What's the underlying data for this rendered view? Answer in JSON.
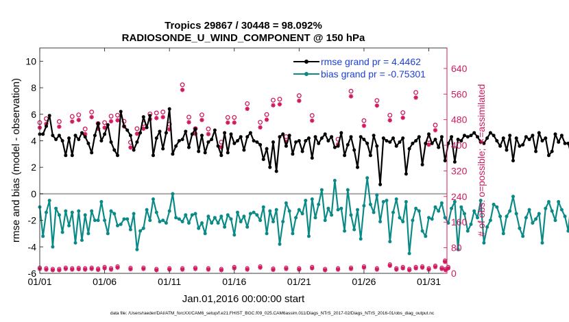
{
  "chart_data": {
    "type": "line",
    "title_line1": "Tropics 29867 / 30448 = 98.092%",
    "title_line2": "RADIOSONDE_U_WIND_COMPONENT @ 150 hPa",
    "xlabel": "Jan.01,2016 00:00:00 start",
    "ylabel_left": "rmse and bias (model - observation)",
    "ylabel_right": "# of obs: o=possible; ∗=assimilated",
    "footer": "data file: /Users/raeder/DAI/ATM_forcXX/CAM6_setup/f.e21.FHIST_BGC.f09_025.CAM6assim.011/Diags_NTrS_2017-02/Diags_NTrS_2016-01/obs_diag_output.nc",
    "xlim": [
      0,
      31.4
    ],
    "ylim_left": [
      -6,
      11
    ],
    "ylim_right": [
      0,
      704
    ],
    "x_ticks": [
      {
        "x": 0,
        "label": "01/01"
      },
      {
        "x": 5,
        "label": "01/06"
      },
      {
        "x": 10,
        "label": "01/11"
      },
      {
        "x": 15,
        "label": "01/16"
      },
      {
        "x": 20,
        "label": "01/21"
      },
      {
        "x": 25,
        "label": "01/26"
      },
      {
        "x": 30,
        "label": "01/31"
      }
    ],
    "y_ticks_left": [
      {
        "v": -6,
        "label": "-6"
      },
      {
        "v": -4,
        "label": "-4"
      },
      {
        "v": -2,
        "label": "-2"
      },
      {
        "v": 0,
        "label": "0"
      },
      {
        "v": 2,
        "label": "2"
      },
      {
        "v": 4,
        "label": "4"
      },
      {
        "v": 6,
        "label": "6"
      },
      {
        "v": 8,
        "label": "8"
      },
      {
        "v": 10,
        "label": "10"
      }
    ],
    "y_ticks_right": [
      {
        "v": 0,
        "label": "0"
      },
      {
        "v": 80,
        "label": "80"
      },
      {
        "v": 160,
        "label": "160"
      },
      {
        "v": 240,
        "label": "240"
      },
      {
        "v": 320,
        "label": "320"
      },
      {
        "v": 400,
        "label": "400"
      },
      {
        "v": 480,
        "label": "480"
      },
      {
        "v": 560,
        "label": "560"
      },
      {
        "v": 640,
        "label": "640"
      }
    ],
    "x_step": 0.25,
    "series": [
      {
        "name": "rmse",
        "legend": "rmse grand pr = 4.4462",
        "color": "#000000",
        "axis": "left",
        "values": [
          4.5,
          4.5,
          5.1,
          5.9,
          4.4,
          4.1,
          4.4,
          4.0,
          2.9,
          4.2,
          2.9,
          4.4,
          4.1,
          4.6,
          4.3,
          3.8,
          3.1,
          4.4,
          5.3,
          4.0,
          4.5,
          5.2,
          3.9,
          3.3,
          2.9,
          6.2,
          5.1,
          4.8,
          4.4,
          3.3,
          3.9,
          4.6,
          5.8,
          5.0,
          5.9,
          2.9,
          4.2,
          4.7,
          3.4,
          4.6,
          6.4,
          3.0,
          3.6,
          4.0,
          4.1,
          4.7,
          3.5,
          4.5,
          4.9,
          3.2,
          4.4,
          3.1,
          3.9,
          4.1,
          4.8,
          3.6,
          2.9,
          4.6,
          3.1,
          4.5,
          3.8,
          4.0,
          4.3,
          3.3,
          4.3,
          4.6,
          4.0,
          3.9,
          3.7,
          2.6,
          3.4,
          2.0,
          3.9,
          1.7,
          4.3,
          4.5,
          3.6,
          4.4,
          3.0,
          3.9,
          4.0,
          3.2,
          4.0,
          4.2,
          2.7,
          4.3,
          3.8,
          4.2,
          4.5,
          4.0,
          4.3,
          3.5,
          3.6,
          4.6,
          2.9,
          3.7,
          4.3,
          3.3,
          2.0,
          4.3,
          4.1,
          3.8,
          2.9,
          4.4,
          3.6,
          0.7,
          4.2,
          4.0,
          3.9,
          4.2,
          3.6,
          3.9,
          4.2,
          1.5,
          3.4,
          3.8,
          4.0,
          4.3,
          2.2,
          3.8,
          4.5,
          3.8,
          4.1,
          3.5,
          4.3,
          2.5,
          3.8,
          4.3,
          2.4,
          4.1,
          4.0,
          4.4,
          4.3,
          4.4,
          4.6,
          4.3,
          3.9,
          3.8,
          4.2,
          4.6,
          4.4,
          4.0,
          3.6,
          4.2,
          3.3,
          4.4,
          2.5,
          4.2,
          3.6,
          3.7,
          4.3,
          4.1,
          4.4,
          3.2,
          4.6,
          4.0,
          4.2,
          2.9,
          3.2,
          4.5,
          3.9,
          4.4,
          3.8,
          3.8,
          2.9,
          4.6,
          4.4,
          0.7,
          4.4,
          4.1,
          3.9,
          4.6,
          4.2,
          5.3,
          5.5,
          4.3,
          4.0,
          4.9,
          4.1,
          4.4,
          5.1,
          3.8,
          4.8,
          5.2,
          3.6,
          4.8,
          2.5,
          3.2,
          4.3,
          2.8,
          3.3,
          5.0,
          4.0,
          4.6,
          5.4,
          4.0,
          4.6,
          3.5,
          4.3,
          3.9,
          4.9,
          0.6,
          4.8,
          3.8,
          4.0,
          4.5,
          4.2,
          3.0,
          4.4,
          2.5
        ]
      },
      {
        "name": "bias",
        "legend": "bias grand pr = -0.75301",
        "color": "#0a8a86",
        "axis": "left",
        "values": [
          -1.0,
          -3.2,
          -1.4,
          -0.5,
          -4.0,
          -1.1,
          -1.6,
          -2.9,
          -1.3,
          -2.4,
          -1.4,
          -3.7,
          -1.3,
          -3.5,
          -1.6,
          -3.0,
          -1.3,
          -2.0,
          -2.0,
          -0.6,
          -2.0,
          -3.0,
          -1.3,
          -1.5,
          -2.4,
          -2.3,
          -1.9,
          -1.9,
          -2.7,
          -1.5,
          -4.2,
          -2.8,
          -2.6,
          -1.2,
          -2.0,
          -0.4,
          -1.4,
          -2.1,
          -2.0,
          -2.2,
          -1.3,
          0.0,
          -1.8,
          -1.9,
          -2.1,
          -1.6,
          -2.2,
          -1.6,
          -1.5,
          -2.6,
          -2.2,
          -3.0,
          -1.7,
          -2.2,
          -1.8,
          -2.2,
          -1.7,
          -2.5,
          -1.6,
          -1.9,
          -3.1,
          -1.4,
          -2.1,
          -1.7,
          -2.5,
          -1.5,
          -1.4,
          -1.6,
          -2.0,
          -1.0,
          -3.0,
          -1.3,
          -2.1,
          -1.2,
          -3.8,
          -2.1,
          -0.7,
          -1.3,
          -3.0,
          -1.8,
          -1.2,
          -1.5,
          -0.5,
          -3.2,
          -0.4,
          -1.8,
          -0.8,
          0.3,
          -2.0,
          -1.1,
          -1.6,
          1.0,
          -1.2,
          -1.1,
          -2.8,
          0.3,
          -1.6,
          -2.7,
          -1.2,
          -3.4,
          -0.9,
          1.2,
          -0.8,
          -1.4,
          -0.1,
          -2.1,
          -0.6,
          -0.5,
          -3.6,
          -1.4,
          -0.4,
          -1.8,
          -2.1,
          -0.6,
          -4.5,
          -2.0,
          -1.1,
          -1.3,
          -2.8,
          -3.2,
          -1.8,
          -1.9,
          -1.0,
          -1.3,
          -0.7,
          -1.8,
          -2.2,
          -1.1,
          -0.6,
          -4.2,
          -1.0,
          -1.5,
          -2.8,
          -2.3,
          -1.3,
          -1.8,
          -0.5,
          -3.7,
          -2.5,
          -2.0,
          -0.8,
          -1.0,
          -1.7,
          -3.0,
          -1.7,
          -1.3,
          -0.2,
          -1.5,
          -2.6,
          -3.2,
          -1.8,
          -1.2,
          -2.2,
          -1.9,
          -1.5,
          -3.7,
          -1.1,
          -0.6,
          -1.3,
          -2.0,
          -0.6,
          -1.2,
          -1.7,
          -2.8,
          -0.4,
          -2.8,
          -0.6,
          -2.7,
          -0.3,
          -0.8,
          -1.0,
          -2.3,
          -1.0,
          -0.5,
          -3.4,
          -0.3,
          -1.7,
          -1.3,
          -0.6,
          -2.2,
          -0.2,
          -1.9,
          -1.3,
          0.5,
          -1.6,
          -0.2,
          -0.9,
          -1.5,
          -3.3,
          -2.0,
          -0.6,
          -3.4,
          -1.0,
          -0.7,
          -2.7,
          -0.4,
          -0.8,
          0.6,
          -2.3,
          -0.4,
          -3.1,
          -0.9,
          -0.5,
          -1.4,
          1.2,
          -3.2,
          -0.8,
          -0.6,
          -1.6,
          -0.2,
          -1.4,
          -0.8,
          -0.5,
          -0.4,
          -1.5,
          -0.5,
          -1.3,
          -1.8
        ]
      }
    ],
    "obs_possible": [
      471,
      483,
      474,
      490,
      495,
      451,
      504,
      468,
      471,
      491,
      494,
      475,
      409,
      452,
      468,
      498,
      501,
      504,
      466,
      589,
      488,
      452,
      495,
      451,
      410,
      487,
      487,
      530,
      472,
      496,
      541,
      544,
      427,
      555,
      493,
      419,
      569,
      477,
      540,
      494,
      502,
      565,
      418,
      463
    ],
    "obs_assimilated": [
      455,
      467,
      458,
      474,
      479,
      435,
      488,
      452,
      455,
      475,
      478,
      459,
      393,
      436,
      452,
      482,
      485,
      488,
      450,
      573,
      472,
      436,
      479,
      435,
      394,
      471,
      471,
      514,
      456,
      480,
      525,
      528,
      411,
      539,
      477,
      403,
      553,
      461,
      524,
      478,
      486,
      549,
      402,
      447
    ],
    "obs_x": [
      0.0,
      0.5,
      1.5,
      2.5,
      3.0,
      3.5,
      4.0,
      4.5,
      5.0,
      5.5,
      6.0,
      6.5,
      7.0,
      7.5,
      8.0,
      8.5,
      9.0,
      9.5,
      10.0,
      11.0,
      11.5,
      12.0,
      12.5,
      13.0,
      14.0,
      14.5,
      15.0,
      16.0,
      17.0,
      17.5,
      18.0,
      18.5,
      19.0,
      20.0,
      21.0,
      23.0,
      24.0,
      25.0,
      26.0,
      27.0,
      28.0,
      29.0,
      30.0,
      30.5
    ],
    "obs_low_possible": [
      18,
      16,
      14,
      14,
      18,
      16,
      17,
      16,
      18,
      15,
      20,
      16,
      22,
      17,
      18,
      14,
      16,
      16,
      18,
      16,
      14,
      20,
      16,
      22,
      15,
      18,
      16,
      20,
      14,
      16,
      18,
      22,
      16,
      28,
      16,
      20,
      14,
      20,
      22,
      16,
      24,
      18,
      40,
      20,
      14
    ],
    "obs_low_x": [
      0.0,
      0.5,
      1.0,
      1.5,
      2.0,
      2.5,
      3.0,
      3.5,
      4.0,
      4.5,
      5.0,
      5.5,
      6.0,
      7.0,
      8.0,
      9.0,
      10.0,
      11.0,
      12.0,
      13.0,
      14.0,
      15.0,
      16.0,
      17.0,
      18.0,
      19.0,
      20.0,
      21.0,
      22.0,
      23.0,
      24.0,
      25.0,
      26.0,
      27.0,
      27.5,
      28.0,
      28.5,
      29.0,
      29.5,
      30.0,
      30.5,
      31.0,
      31.25,
      31.5,
      31.3
    ]
  }
}
